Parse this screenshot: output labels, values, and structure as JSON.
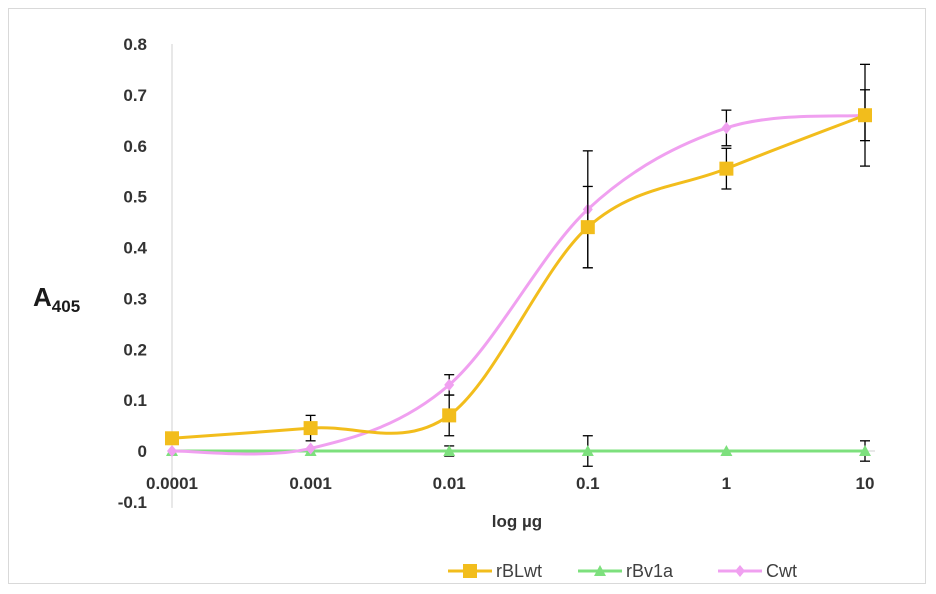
{
  "chart_data": {
    "type": "line",
    "title": "",
    "xlabel": "log µg",
    "ylabel_main": "A",
    "ylabel_sub": "405",
    "x_scale": "log",
    "x": [
      0.0001,
      0.001,
      0.01,
      0.1,
      1,
      10
    ],
    "x_tick_labels": [
      "0.0001",
      "0.001",
      "0.01",
      "0.1",
      "1",
      "10"
    ],
    "ylim": [
      -0.1,
      0.8
    ],
    "y_ticks": [
      -0.1,
      0,
      0.1,
      0.2,
      0.3,
      0.4,
      0.5,
      0.6,
      0.7,
      0.8
    ],
    "y_tick_labels": [
      "-0.1",
      "0",
      "0.1",
      "0.2",
      "0.3",
      "0.4",
      "0.5",
      "0.6",
      "0.7",
      "0.8"
    ],
    "grid": false,
    "legend_position": "bottom-right",
    "series": [
      {
        "name": "rBLwt",
        "color": "#f2bd1c",
        "marker": "square",
        "values": [
          0.025,
          0.045,
          0.07,
          0.44,
          0.555,
          0.66
        ],
        "errors": [
          null,
          0.025,
          0.04,
          0.08,
          0.04,
          0.1
        ]
      },
      {
        "name": "rBv1a",
        "color": "#7de07d",
        "marker": "triangle",
        "values": [
          0.0,
          0.0,
          0.0,
          0.0,
          0.0,
          0.0
        ],
        "errors": [
          null,
          null,
          0.01,
          0.03,
          null,
          0.02
        ]
      },
      {
        "name": "Cwt",
        "color": "#f0a0f0",
        "marker": "diamond",
        "values": [
          0.0,
          0.005,
          0.13,
          0.475,
          0.635,
          0.66
        ],
        "errors": [
          null,
          null,
          0.02,
          0.115,
          0.035,
          0.05
        ]
      }
    ]
  }
}
